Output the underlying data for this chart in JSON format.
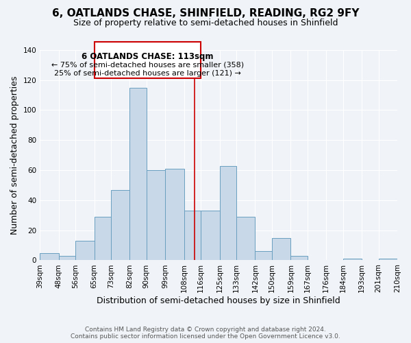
{
  "title": "6, OATLANDS CHASE, SHINFIELD, READING, RG2 9FY",
  "subtitle": "Size of property relative to semi-detached houses in Shinfield",
  "xlabel": "Distribution of semi-detached houses by size in Shinfield",
  "ylabel": "Number of semi-detached properties",
  "footer_line1": "Contains HM Land Registry data © Crown copyright and database right 2024.",
  "footer_line2": "Contains public sector information licensed under the Open Government Licence v3.0.",
  "bin_labels": [
    "39sqm",
    "48sqm",
    "56sqm",
    "65sqm",
    "73sqm",
    "82sqm",
    "90sqm",
    "99sqm",
    "108sqm",
    "116sqm",
    "125sqm",
    "133sqm",
    "142sqm",
    "150sqm",
    "159sqm",
    "167sqm",
    "176sqm",
    "184sqm",
    "193sqm",
    "201sqm",
    "210sqm"
  ],
  "bin_edges": [
    39,
    48,
    56,
    65,
    73,
    82,
    90,
    99,
    108,
    116,
    125,
    133,
    142,
    150,
    159,
    167,
    176,
    184,
    193,
    201,
    210
  ],
  "bar_heights": [
    5,
    3,
    13,
    29,
    47,
    115,
    60,
    61,
    33,
    33,
    63,
    29,
    6,
    15,
    3,
    0,
    0,
    1,
    0,
    1
  ],
  "bar_color": "#c8d8e8",
  "bar_edge_color": "#6a9fc0",
  "vline_x": 113,
  "vline_color": "#cc0000",
  "annotation_title": "6 OATLANDS CHASE: 113sqm",
  "annotation_line1": "← 75% of semi-detached houses are smaller (358)",
  "annotation_line2": "25% of semi-detached houses are larger (121) →",
  "annotation_box_color": "#cc0000",
  "ylim": [
    0,
    140
  ],
  "yticks": [
    0,
    20,
    40,
    60,
    80,
    100,
    120,
    140
  ],
  "background_color": "#f0f4f8",
  "grid_color": "#ffffff",
  "title_fontsize": 11,
  "subtitle_fontsize": 9,
  "axis_label_fontsize": 9,
  "tick_fontsize": 7.5,
  "annotation_fontsize": 8.5,
  "footer_fontsize": 6.5
}
